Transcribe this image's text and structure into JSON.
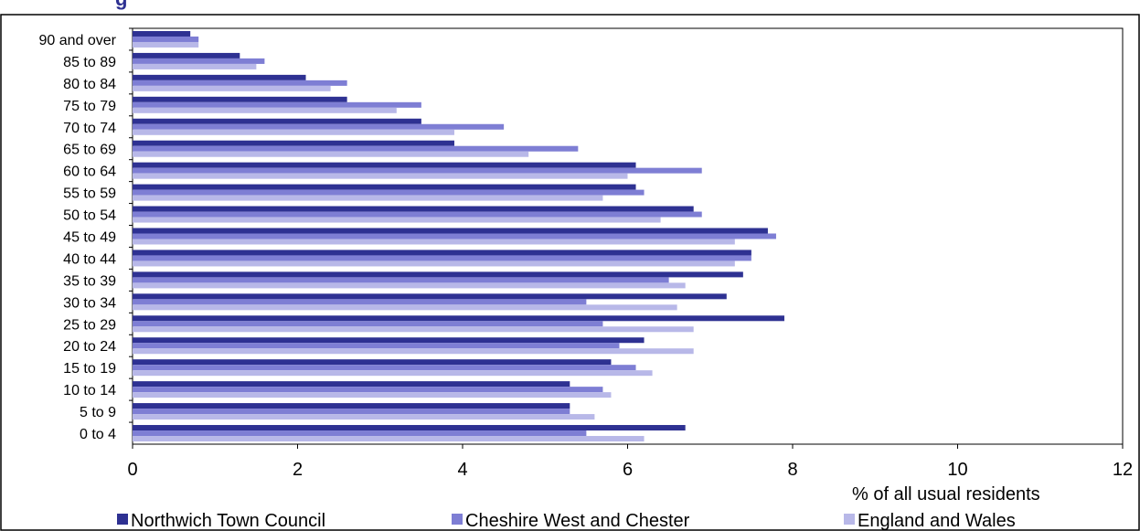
{
  "chart_data": {
    "type": "bar",
    "orientation": "horizontal",
    "title": "g",
    "xlabel": "% of all usual residents",
    "xlim": [
      0,
      12
    ],
    "xticks": [
      "0",
      "2",
      "4",
      "6",
      "8",
      "10",
      "12"
    ],
    "categories": [
      "0 to 4",
      "5 to 9",
      "10 to 14",
      "15 to 19",
      "20 to 24",
      "25 to 29",
      "30 to 34",
      "35 to 39",
      "40 to 44",
      "45 to 49",
      "50 to 54",
      "55 to 59",
      "60 to 64",
      "65 to 69",
      "70 to 74",
      "75 to 79",
      "80 to 84",
      "85 to 89",
      "90 and over"
    ],
    "series": [
      {
        "name": "Northwich Town Council",
        "color": "#2E3192",
        "values": [
          6.7,
          5.3,
          5.3,
          5.8,
          6.2,
          7.9,
          7.2,
          7.4,
          7.5,
          7.7,
          6.8,
          6.1,
          6.1,
          3.9,
          3.5,
          2.6,
          2.1,
          1.3,
          0.7
        ]
      },
      {
        "name": "Cheshire West and Chester",
        "color": "#7E7ED4",
        "values": [
          5.5,
          5.3,
          5.7,
          6.1,
          5.9,
          5.7,
          5.5,
          6.5,
          7.5,
          7.8,
          6.9,
          6.2,
          6.9,
          5.4,
          4.5,
          3.5,
          2.6,
          1.6,
          0.8
        ]
      },
      {
        "name": "England and Wales",
        "color": "#B8B8E8",
        "values": [
          6.2,
          5.6,
          5.8,
          6.3,
          6.8,
          6.8,
          6.6,
          6.7,
          7.3,
          7.3,
          6.4,
          5.7,
          6.0,
          4.8,
          3.9,
          3.2,
          2.4,
          1.5,
          0.8
        ]
      }
    ],
    "legend_position": "bottom",
    "grid": false
  }
}
